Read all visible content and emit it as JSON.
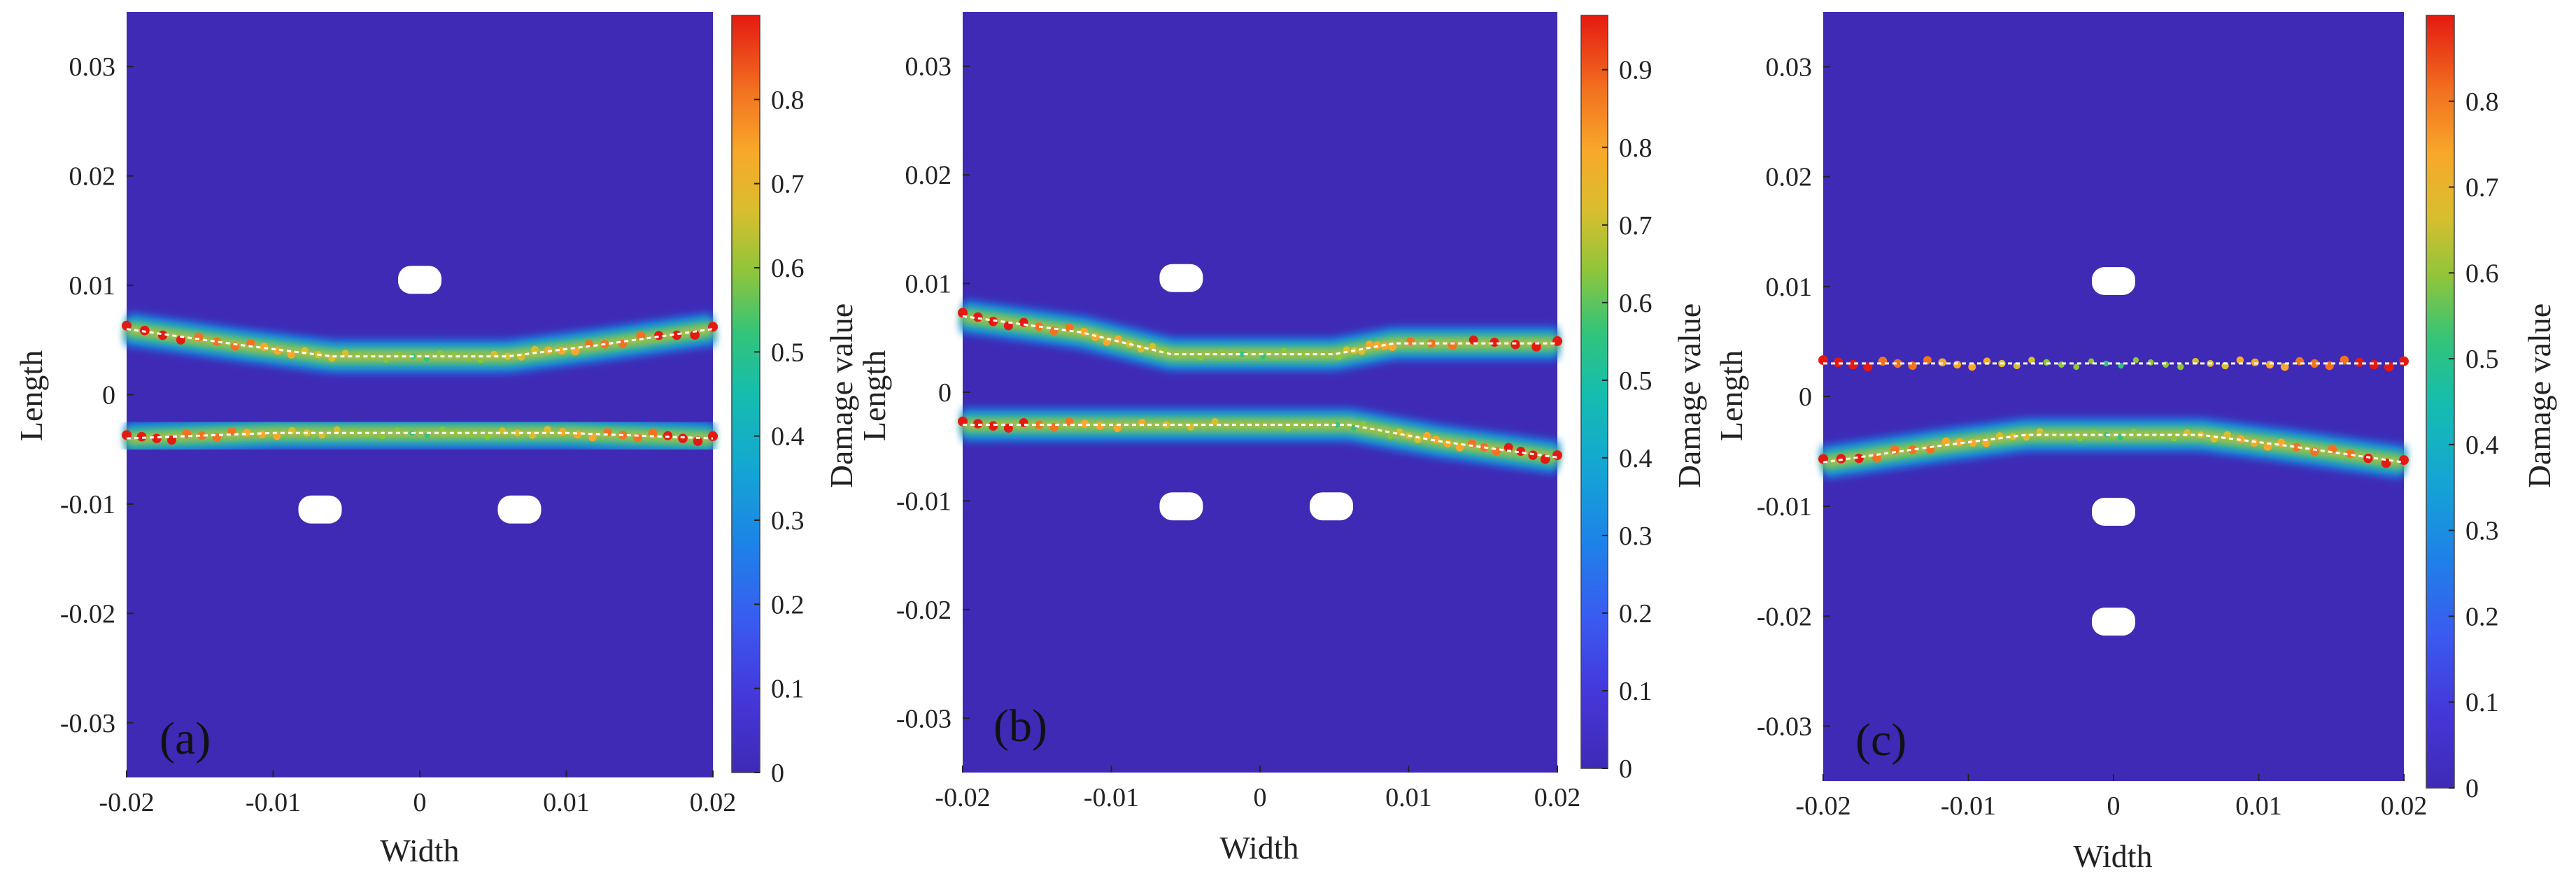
{
  "chart_data": [
    {
      "type": "heatmap",
      "panel_label": "(a)",
      "xlabel": "Width",
      "ylabel": "Length",
      "colorbar_label": "Damage value",
      "xlim": [
        -0.02,
        0.02
      ],
      "ylim": [
        -0.035,
        0.035
      ],
      "x_ticks": [
        "-0.02",
        "-0.01",
        "0",
        "0.01",
        "0.02"
      ],
      "x_tick_values": [
        -0.02,
        -0.01,
        0,
        0.01,
        0.02
      ],
      "y_ticks": [
        "0.03",
        "0.02",
        "0.01",
        "0",
        "-0.01",
        "-0.02",
        "-0.03"
      ],
      "y_tick_values": [
        0.03,
        0.02,
        0.01,
        0,
        -0.01,
        -0.02,
        -0.03
      ],
      "colorbar_range": [
        0,
        0.9
      ],
      "colorbar_ticks": [
        "0",
        "0.1",
        "0.2",
        "0.3",
        "0.4",
        "0.5",
        "0.6",
        "0.7",
        "0.8"
      ],
      "colorbar_tick_values": [
        0,
        0.1,
        0.2,
        0.3,
        0.4,
        0.5,
        0.6,
        0.7,
        0.8
      ],
      "holes": [
        [
          0,
          0.0105
        ],
        [
          -0.0068,
          -0.0105
        ],
        [
          0.0068,
          -0.0105
        ]
      ],
      "cracks": [
        {
          "points": [
            [
              -0.02,
              0.006
            ],
            [
              -0.012,
              0.0045
            ],
            [
              -0.006,
              0.0035
            ],
            [
              0,
              0.0035
            ],
            [
              0.006,
              0.0035
            ],
            [
              0.012,
              0.0045
            ],
            [
              0.02,
              0.006
            ]
          ],
          "peak": 0.85
        },
        {
          "points": [
            [
              -0.02,
              -0.004
            ],
            [
              -0.01,
              -0.0035
            ],
            [
              0,
              -0.0035
            ],
            [
              0.01,
              -0.0035
            ],
            [
              0.02,
              -0.004
            ]
          ],
          "peak": 0.85
        }
      ]
    },
    {
      "type": "heatmap",
      "panel_label": "(b)",
      "xlabel": "Width",
      "ylabel": "Length",
      "colorbar_label": "Damage value",
      "xlim": [
        -0.02,
        0.02
      ],
      "ylim": [
        -0.035,
        0.035
      ],
      "x_ticks": [
        "-0.02",
        "-0.01",
        "0",
        "0.01",
        "0.02"
      ],
      "x_tick_values": [
        -0.02,
        -0.01,
        0,
        0.01,
        0.02
      ],
      "y_ticks": [
        "0.03",
        "0.02",
        "0.01",
        "0",
        "-0.01",
        "-0.02",
        "-0.03"
      ],
      "y_tick_values": [
        0.03,
        0.02,
        0.01,
        0,
        -0.01,
        -0.02,
        -0.03
      ],
      "colorbar_range": [
        0,
        0.97
      ],
      "colorbar_ticks": [
        "0",
        "0.1",
        "0.2",
        "0.3",
        "0.4",
        "0.5",
        "0.6",
        "0.7",
        "0.8",
        "0.9"
      ],
      "colorbar_tick_values": [
        0,
        0.1,
        0.2,
        0.3,
        0.4,
        0.5,
        0.6,
        0.7,
        0.8,
        0.9
      ],
      "holes": [
        [
          -0.0053,
          0.0105
        ],
        [
          -0.0053,
          -0.0105
        ],
        [
          0.0048,
          -0.0105
        ]
      ],
      "cracks": [
        {
          "points": [
            [
              -0.02,
              0.007
            ],
            [
              -0.012,
              0.0055
            ],
            [
              -0.006,
              0.0035
            ],
            [
              0.005,
              0.0035
            ],
            [
              0.009,
              0.0045
            ],
            [
              0.02,
              0.0045
            ]
          ],
          "peak": 0.9
        },
        {
          "points": [
            [
              -0.02,
              -0.003
            ],
            [
              -0.01,
              -0.003
            ],
            [
              0.006,
              -0.003
            ],
            [
              0.012,
              -0.0045
            ],
            [
              0.02,
              -0.006
            ]
          ],
          "peak": 0.9
        }
      ]
    },
    {
      "type": "heatmap",
      "panel_label": "(c)",
      "xlabel": "Width",
      "ylabel": "Length",
      "colorbar_label": "Damage value",
      "xlim": [
        -0.02,
        0.02
      ],
      "ylim": [
        -0.035,
        0.035
      ],
      "x_ticks": [
        "-0.02",
        "-0.01",
        "0",
        "0.01",
        "0.02"
      ],
      "x_tick_values": [
        -0.02,
        -0.01,
        0,
        0.01,
        0.02
      ],
      "y_ticks": [
        "0.03",
        "0.02",
        "0.01",
        "0",
        "-0.01",
        "-0.02",
        "-0.03"
      ],
      "y_tick_values": [
        0.03,
        0.02,
        0.01,
        0,
        -0.01,
        -0.02,
        -0.03
      ],
      "colorbar_range": [
        0,
        0.9
      ],
      "colorbar_ticks": [
        "0",
        "0.1",
        "0.2",
        "0.3",
        "0.4",
        "0.5",
        "0.6",
        "0.7",
        "0.8"
      ],
      "colorbar_tick_values": [
        0,
        0.1,
        0.2,
        0.3,
        0.4,
        0.5,
        0.6,
        0.7,
        0.8
      ],
      "holes": [
        [
          0,
          0.0105
        ],
        [
          0,
          -0.0105
        ],
        [
          0,
          -0.0205
        ]
      ],
      "cracks": [
        {
          "points": [
            [
              -0.02,
              0.003
            ],
            [
              -0.01,
              0.003
            ],
            [
              0,
              0.003
            ],
            [
              0.01,
              0.003
            ],
            [
              0.02,
              0.003
            ]
          ],
          "peak": 0.88
        },
        {
          "points": [
            [
              -0.02,
              -0.006
            ],
            [
              -0.012,
              -0.0045
            ],
            [
              -0.006,
              -0.0035
            ],
            [
              0,
              -0.0035
            ],
            [
              0.006,
              -0.0035
            ],
            [
              0.012,
              -0.0045
            ],
            [
              0.02,
              -0.006
            ]
          ],
          "peak": 0.8
        }
      ]
    }
  ],
  "colors": {
    "background_damage": "#3F2AB5",
    "hole": "#ffffff",
    "crack_center": "#ffffff"
  }
}
